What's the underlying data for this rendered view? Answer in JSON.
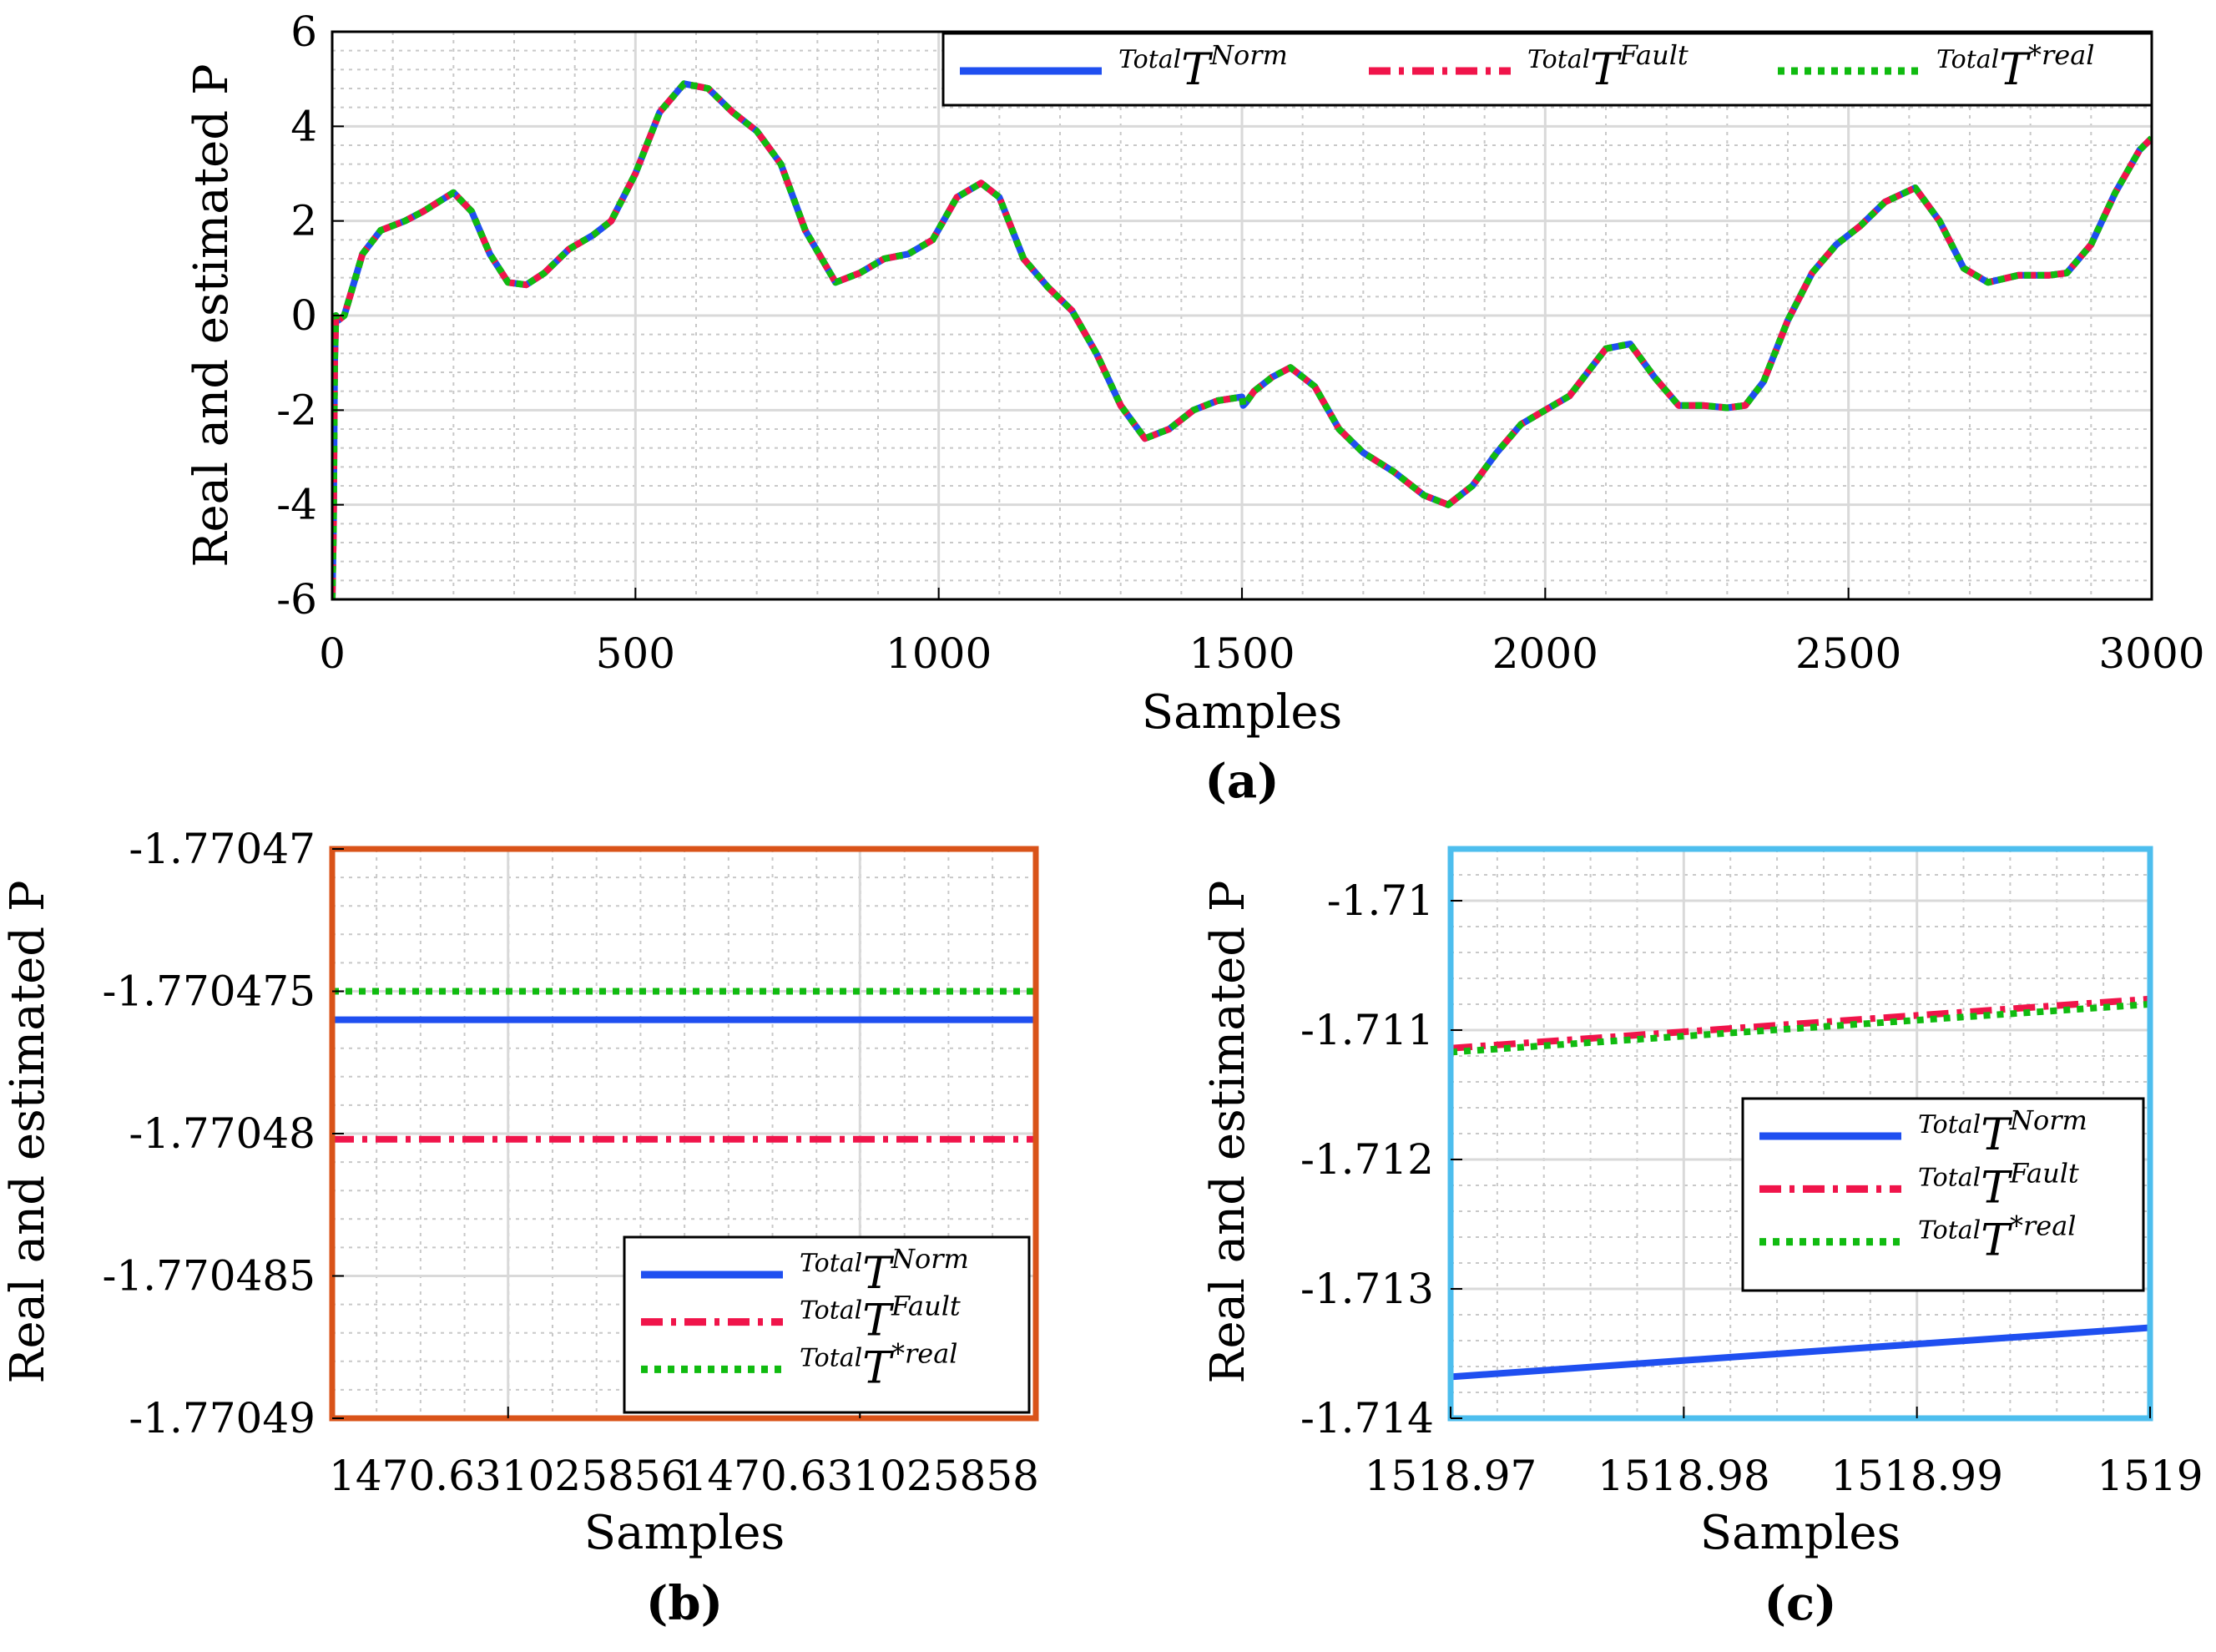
{
  "chart_data": [
    {
      "id": "a",
      "type": "line",
      "caption": "(a)",
      "xlabel": "Samples",
      "ylabel": "Real and estimated P",
      "xlim": [
        0,
        3000
      ],
      "ylim": [
        -6,
        6
      ],
      "xticks": [
        0,
        500,
        1000,
        1500,
        2000,
        2500,
        3000
      ],
      "yticks": [
        -6,
        -4,
        -2,
        0,
        2,
        4,
        6
      ],
      "grid": true,
      "legend_position": "top-right",
      "series": [
        {
          "name": "TotalT^Norm",
          "sup1": "Total",
          "base": "T",
          "sup2": "Norm",
          "color": "#1f4ff0",
          "style": "solid"
        },
        {
          "name": "TotalT^Fault",
          "sup1": "Total",
          "base": "T",
          "sup2": "Fault",
          "color": "#f0144a",
          "style": "dashdot"
        },
        {
          "name": "TotalT^*real",
          "sup1": "Total",
          "base": "T",
          "sup2": "*real",
          "color": "#10bb10",
          "style": "dotted"
        }
      ],
      "x": [
        0,
        2,
        4,
        6,
        10,
        20,
        50,
        80,
        120,
        150,
        200,
        230,
        260,
        290,
        320,
        350,
        390,
        430,
        460,
        500,
        540,
        580,
        620,
        660,
        700,
        740,
        780,
        830,
        870,
        910,
        950,
        990,
        1030,
        1070,
        1100,
        1140,
        1180,
        1220,
        1260,
        1300,
        1340,
        1380,
        1420,
        1460,
        1500,
        1502,
        1506,
        1520,
        1550,
        1580,
        1620,
        1660,
        1700,
        1750,
        1800,
        1840,
        1880,
        1920,
        1960,
        2000,
        2040,
        2100,
        2140,
        2180,
        2220,
        2260,
        2300,
        2330,
        2360,
        2400,
        2440,
        2480,
        2520,
        2560,
        2610,
        2650,
        2690,
        2730,
        2780,
        2830,
        2860,
        2900,
        2940,
        2980,
        3000
      ],
      "y": [
        -6,
        -4.5,
        -1.0,
        0.0,
        -0.1,
        0.0,
        1.3,
        1.8,
        2.0,
        2.2,
        2.6,
        2.2,
        1.3,
        0.7,
        0.65,
        0.9,
        1.4,
        1.7,
        2.0,
        3.0,
        4.3,
        4.9,
        4.8,
        4.3,
        3.9,
        3.2,
        1.8,
        0.7,
        0.9,
        1.2,
        1.3,
        1.6,
        2.5,
        2.8,
        2.5,
        1.2,
        0.6,
        0.1,
        -0.8,
        -1.9,
        -2.6,
        -2.4,
        -2.0,
        -1.8,
        -1.72,
        -1.9,
        -1.85,
        -1.6,
        -1.3,
        -1.1,
        -1.5,
        -2.4,
        -2.9,
        -3.3,
        -3.8,
        -4.0,
        -3.6,
        -2.9,
        -2.3,
        -2.0,
        -1.7,
        -0.7,
        -0.6,
        -1.3,
        -1.9,
        -1.9,
        -1.95,
        -1.9,
        -1.4,
        -0.1,
        0.9,
        1.5,
        1.9,
        2.4,
        2.7,
        2.0,
        1.0,
        0.7,
        0.85,
        0.85,
        0.9,
        1.5,
        2.6,
        3.5,
        3.75
      ]
    },
    {
      "id": "b",
      "type": "line",
      "caption": "(b)",
      "xlabel": "Samples",
      "ylabel": "Real and estimated P",
      "xlim": [
        1470.631025855,
        1470.631025859
      ],
      "ylim": [
        -1.77049,
        -1.77047
      ],
      "xticks": [
        1470.631025856,
        1470.631025858
      ],
      "xtick_labels": [
        "1470.631025856",
        "1470.631025858"
      ],
      "yticks": [
        -1.77049,
        -1.770485,
        -1.77048,
        -1.770475,
        -1.77047
      ],
      "ytick_labels": [
        "-1.77049",
        "-1.770485",
        "-1.77048",
        "-1.770475",
        "-1.77047"
      ],
      "grid": true,
      "legend_position": "bottom-right",
      "border_color": "#d95319",
      "series": [
        {
          "name": "TotalT^Norm",
          "x": [
            1470.631025855,
            1470.631025859
          ],
          "y": [
            -1.770476,
            -1.770476
          ]
        },
        {
          "name": "TotalT^Fault",
          "x": [
            1470.631025855,
            1470.631025859
          ],
          "y": [
            -1.7704802,
            -1.7704802
          ]
        },
        {
          "name": "TotalT^*real",
          "x": [
            1470.631025855,
            1470.631025859
          ],
          "y": [
            -1.770475,
            -1.770475
          ]
        }
      ]
    },
    {
      "id": "c",
      "type": "line",
      "caption": "(c)",
      "xlabel": "Samples",
      "ylabel": "Real and estimated P",
      "xlim": [
        1518.97,
        1519.0
      ],
      "ylim": [
        -1.714,
        -1.7096
      ],
      "xticks": [
        1518.97,
        1518.98,
        1518.99,
        1519.0
      ],
      "xtick_labels": [
        "1518.97",
        "1518.98",
        "1518.99",
        "1519"
      ],
      "yticks": [
        -1.714,
        -1.713,
        -1.712,
        -1.711,
        -1.71
      ],
      "ytick_labels": [
        "-1.714",
        "-1.713",
        "-1.712",
        "-1.711",
        "-1.71"
      ],
      "grid": true,
      "legend_position": "middle-right",
      "border_color": "#4dbeee",
      "series": [
        {
          "name": "TotalT^Norm",
          "x": [
            1518.97,
            1519.0
          ],
          "y": [
            -1.71368,
            -1.7133
          ]
        },
        {
          "name": "TotalT^Fault",
          "x": [
            1518.97,
            1519.0
          ],
          "y": [
            -1.71114,
            -1.71076
          ]
        },
        {
          "name": "TotalT^*real",
          "x": [
            1518.97,
            1519.0
          ],
          "y": [
            -1.71117,
            -1.7108
          ]
        }
      ]
    }
  ]
}
